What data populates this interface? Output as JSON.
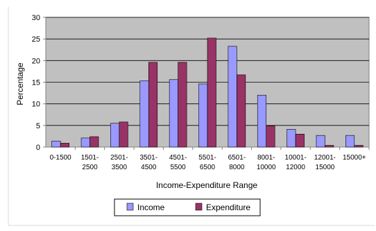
{
  "chart_data": {
    "type": "bar",
    "title": "",
    "xlabel": "Income-Expenditure Range",
    "ylabel": "Percentage",
    "ylim": [
      0,
      30
    ],
    "yticks": [
      0,
      5,
      10,
      15,
      20,
      25,
      30
    ],
    "grid": true,
    "legend": "bottom",
    "categories": [
      [
        "0-1500"
      ],
      [
        "1501-",
        "2500"
      ],
      [
        "2501-",
        "3500"
      ],
      [
        "3501-",
        "4500"
      ],
      [
        "4501-",
        "5500"
      ],
      [
        "5501-",
        "6500"
      ],
      [
        "6501-",
        "8000"
      ],
      [
        "8001-",
        "10000"
      ],
      [
        "10001-",
        "12000"
      ],
      [
        "12001-",
        "15000"
      ],
      [
        "15000+"
      ]
    ],
    "series": [
      {
        "name": "Income",
        "color": "#9999FF",
        "values": [
          1.4,
          2.1,
          5.5,
          15.3,
          15.6,
          14.6,
          23.3,
          12.0,
          4.1,
          2.7,
          2.7
        ]
      },
      {
        "name": "Expenditure",
        "color": "#993366",
        "values": [
          0.9,
          2.4,
          5.8,
          19.6,
          19.6,
          25.2,
          16.7,
          4.9,
          3.0,
          0.4,
          0.4
        ]
      }
    ],
    "colors": {
      "plot_background": "#C0C0C0",
      "gridline": "#000000",
      "axis": "#808080",
      "text": "#000000"
    }
  }
}
